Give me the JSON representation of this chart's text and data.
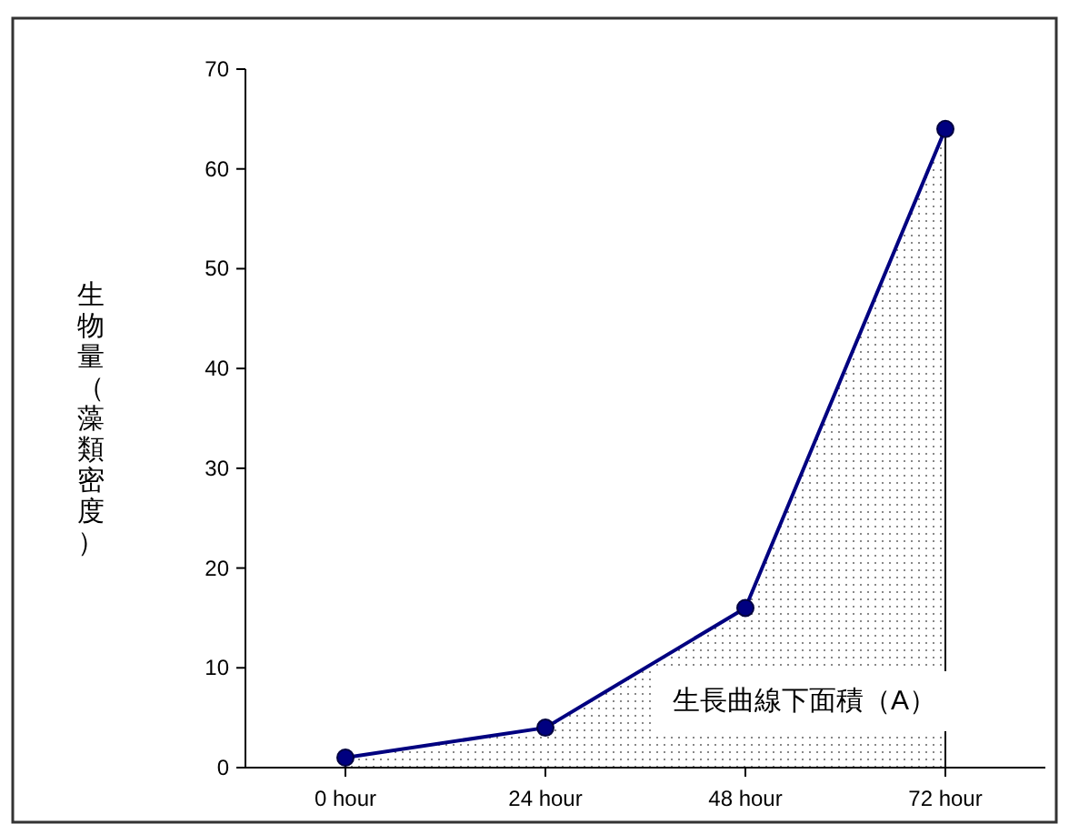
{
  "chart_data": {
    "type": "area",
    "ylabel": "生物量（藻類密度）",
    "categories": [
      "0 hour",
      "24 hour",
      "48 hour",
      "72 hour"
    ],
    "series": [
      {
        "color": "#000080",
        "values": [
          1,
          4,
          16,
          64
        ]
      }
    ],
    "ylim": [
      0,
      70
    ],
    "yticks": [
      0,
      10,
      20,
      30,
      40,
      50,
      60,
      70
    ],
    "marker": "circle",
    "line_style": "solid",
    "grid": false,
    "annotations": [
      "生長曲線下面積（A）"
    ]
  }
}
